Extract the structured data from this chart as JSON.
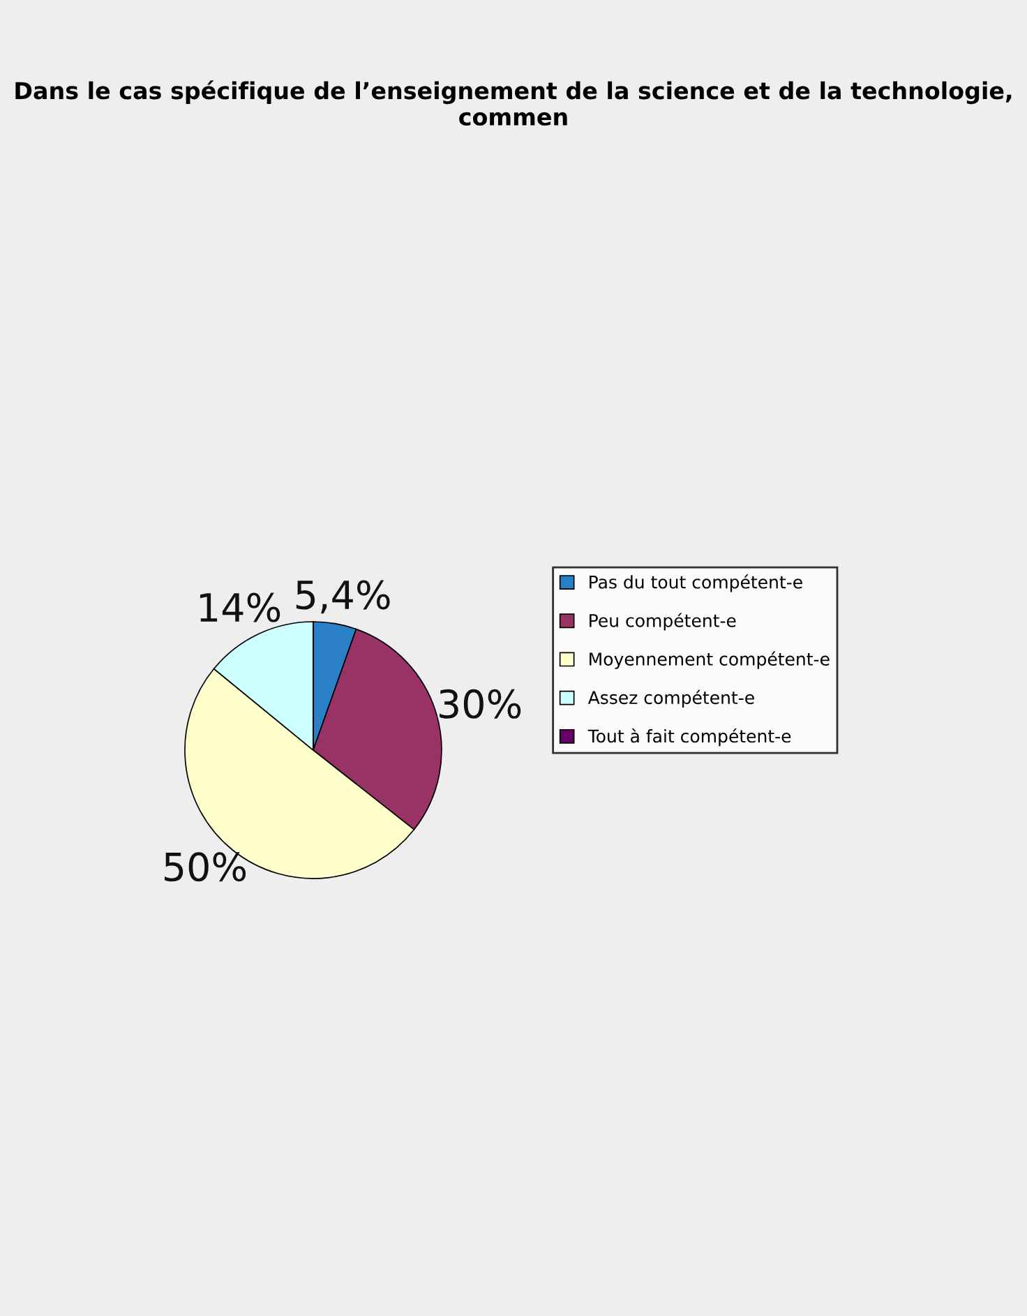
{
  "chart_data": {
    "type": "pie",
    "title": "Dans le cas spécifique de l’enseignement de la science et de la technologie, commen",
    "categories": [
      "Pas du tout compétent-e",
      "Peu compétent-e",
      "Moyennement compétent-e",
      "Assez compétent-e",
      "Tout à fait compétent-e"
    ],
    "values": [
      5.4,
      30,
      50,
      14,
      0
    ],
    "colors": [
      "#2a7fc6",
      "#993366",
      "#ffffcc",
      "#ccffff",
      "#660066"
    ],
    "value_labels": [
      "5,4%",
      "30%",
      "50%",
      "14%",
      null
    ],
    "legend": "right"
  }
}
